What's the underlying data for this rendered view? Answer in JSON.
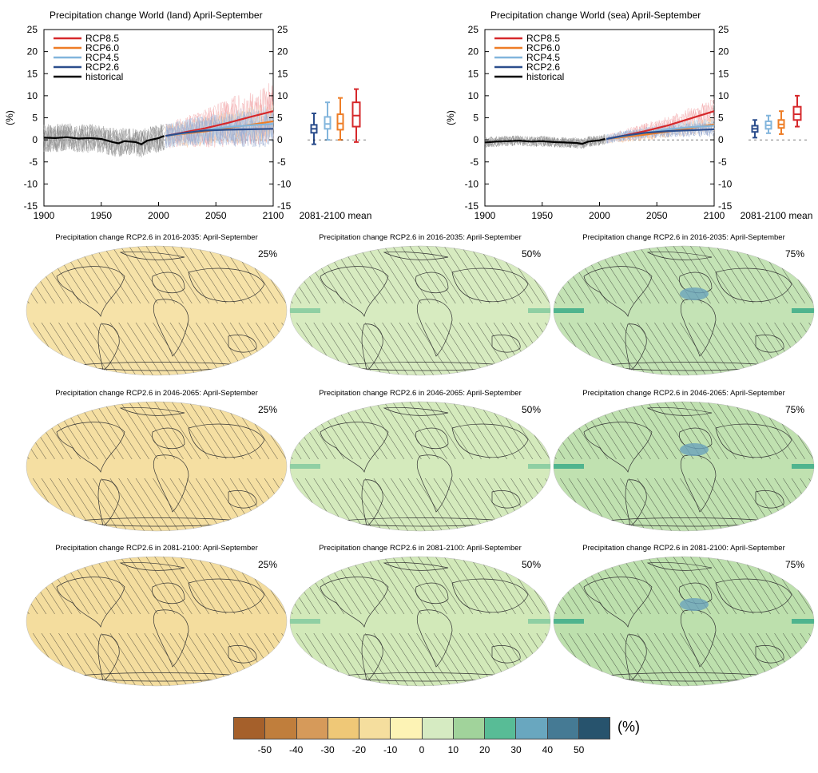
{
  "chart_data": [
    {
      "type": "line",
      "title": "Precipitation change World (land) April-September",
      "ylabel": "(%)",
      "xlim": [
        1900,
        2100
      ],
      "ylim": [
        -15,
        25
      ],
      "x_ticks": [
        "1900",
        "1950",
        "2000",
        "2050",
        "2100"
      ],
      "y_ticks": [
        "-15",
        "-10",
        "-5",
        "0",
        "5",
        "10",
        "15",
        "20",
        "25"
      ],
      "box_label": "2081-2100 mean",
      "legend_position": "top-left",
      "series": [
        {
          "name": "RCP8.5",
          "color": "#d6282b",
          "x": [
            2006,
            2020,
            2040,
            2060,
            2080,
            2100
          ],
          "values": [
            0.9,
            1.6,
            2.6,
            3.8,
            5.2,
            6.5
          ]
        },
        {
          "name": "RCP6.0",
          "color": "#ee7d26",
          "x": [
            2006,
            2020,
            2040,
            2060,
            2080,
            2100
          ],
          "values": [
            0.9,
            1.3,
            1.9,
            2.7,
            3.4,
            4.2
          ]
        },
        {
          "name": "RCP4.5",
          "color": "#82b5dc",
          "x": [
            2006,
            2020,
            2040,
            2060,
            2080,
            2100
          ],
          "values": [
            0.9,
            1.4,
            2.2,
            2.9,
            3.3,
            3.6
          ]
        },
        {
          "name": "RCP2.6",
          "color": "#2b4d8c",
          "x": [
            2006,
            2020,
            2040,
            2060,
            2080,
            2100
          ],
          "values": [
            0.9,
            1.5,
            2.1,
            2.3,
            2.4,
            2.5
          ]
        },
        {
          "name": "historical",
          "color": "#000000",
          "x": [
            1900,
            1910,
            1920,
            1930,
            1940,
            1950,
            1960,
            1965,
            1970,
            1980,
            1985,
            1990,
            2000,
            2005
          ],
          "values": [
            0.5,
            0.4,
            0.6,
            0.3,
            0.4,
            0.2,
            -0.5,
            -0.8,
            -0.3,
            -0.5,
            -1.0,
            -0.2,
            0.4,
            0.9
          ]
        }
      ],
      "boxes": [
        {
          "name": "RCP2.6",
          "color": "#2b4d8c",
          "min": -1.0,
          "q1": 1.6,
          "median": 2.5,
          "q3": 3.4,
          "max": 6.0
        },
        {
          "name": "RCP4.5",
          "color": "#82b5dc",
          "min": 0.0,
          "q1": 2.5,
          "median": 3.6,
          "q3": 5.2,
          "max": 8.5
        },
        {
          "name": "RCP6.0",
          "color": "#ee7d26",
          "min": 0.0,
          "q1": 2.3,
          "median": 3.7,
          "q3": 5.8,
          "max": 9.5
        },
        {
          "name": "RCP8.5",
          "color": "#d6282b",
          "min": -0.5,
          "q1": 3.0,
          "median": 5.5,
          "q3": 8.5,
          "max": 11.5
        }
      ]
    },
    {
      "type": "line",
      "title": "Precipitation change World (sea) April-September",
      "ylabel": "(%)",
      "xlim": [
        1900,
        2100
      ],
      "ylim": [
        -15,
        25
      ],
      "x_ticks": [
        "1900",
        "1950",
        "2000",
        "2050",
        "2100"
      ],
      "y_ticks": [
        "-15",
        "-10",
        "-5",
        "0",
        "5",
        "10",
        "15",
        "20",
        "25"
      ],
      "box_label": "2081-2100 mean",
      "legend_position": "top-left",
      "series": [
        {
          "name": "RCP8.5",
          "color": "#d6282b",
          "x": [
            2006,
            2020,
            2040,
            2060,
            2080,
            2100
          ],
          "values": [
            0.2,
            0.9,
            2.0,
            3.3,
            4.9,
            6.5
          ]
        },
        {
          "name": "RCP6.0",
          "color": "#ee7d26",
          "x": [
            2006,
            2020,
            2040,
            2060,
            2080,
            2100
          ],
          "values": [
            0.2,
            0.6,
            1.2,
            1.9,
            2.7,
            3.5
          ]
        },
        {
          "name": "RCP4.5",
          "color": "#82b5dc",
          "x": [
            2006,
            2020,
            2040,
            2060,
            2080,
            2100
          ],
          "values": [
            0.2,
            0.8,
            1.6,
            2.4,
            2.9,
            3.2
          ]
        },
        {
          "name": "RCP2.6",
          "color": "#2b4d8c",
          "x": [
            2006,
            2020,
            2040,
            2060,
            2080,
            2100
          ],
          "values": [
            0.2,
            0.9,
            1.6,
            2.0,
            2.2,
            2.4
          ]
        },
        {
          "name": "historical",
          "color": "#000000",
          "x": [
            1900,
            1910,
            1920,
            1930,
            1940,
            1950,
            1960,
            1970,
            1980,
            1985,
            1990,
            2000,
            2005
          ],
          "values": [
            -0.6,
            -0.4,
            -0.3,
            -0.2,
            -0.4,
            -0.3,
            -0.5,
            -0.6,
            -0.7,
            -0.9,
            -0.4,
            -0.1,
            0.2
          ]
        }
      ],
      "boxes": [
        {
          "name": "RCP2.6",
          "color": "#2b4d8c",
          "min": 0.5,
          "q1": 1.8,
          "median": 2.5,
          "q3": 3.2,
          "max": 4.5
        },
        {
          "name": "RCP4.5",
          "color": "#82b5dc",
          "min": 1.5,
          "q1": 2.5,
          "median": 3.3,
          "q3": 4.2,
          "max": 5.5
        },
        {
          "name": "RCP6.0",
          "color": "#ee7d26",
          "min": 1.3,
          "q1": 2.7,
          "median": 3.5,
          "q3": 4.5,
          "max": 6.5
        },
        {
          "name": "RCP8.5",
          "color": "#d6282b",
          "min": 3.0,
          "q1": 4.5,
          "median": 5.8,
          "q3": 7.5,
          "max": 10.0
        }
      ]
    },
    {
      "type": "heatmap",
      "maps": [
        {
          "title": "Precipitation change RCP2.6 in 2016-2035: April-September",
          "percentile": "25%",
          "fill": "#f6e2a8"
        },
        {
          "title": "Precipitation change RCP2.6 in 2016-2035: April-September",
          "percentile": "50%",
          "fill": "#d7ebc0"
        },
        {
          "title": "Precipitation change RCP2.6 in 2016-2035: April-September",
          "percentile": "75%",
          "fill": "#c4e3b5"
        },
        {
          "title": "Precipitation change RCP2.6 in 2046-2065: April-September",
          "percentile": "25%",
          "fill": "#f5dfa2"
        },
        {
          "title": "Precipitation change RCP2.6 in 2046-2065: April-September",
          "percentile": "50%",
          "fill": "#d4eabc"
        },
        {
          "title": "Precipitation change RCP2.6 in 2046-2065: April-September",
          "percentile": "75%",
          "fill": "#c0e1b0"
        },
        {
          "title": "Precipitation change RCP2.6 in 2081-2100: April-September",
          "percentile": "25%",
          "fill": "#f4dd9e"
        },
        {
          "title": "Precipitation change RCP2.6 in 2081-2100: April-September",
          "percentile": "50%",
          "fill": "#d2e9b9"
        },
        {
          "title": "Precipitation change RCP2.6 in 2081-2100: April-September",
          "percentile": "75%",
          "fill": "#bde0ad"
        }
      ],
      "colorbar": {
        "unit": "(%)",
        "colors": [
          "#a5602b",
          "#c07e3c",
          "#d69a5a",
          "#efc877",
          "#f5de9e",
          "#fdf3b5",
          "#d6ebc2",
          "#a1d39b",
          "#58bc96",
          "#69a7bf",
          "#457a94",
          "#27536d"
        ],
        "ticks": [
          "-50",
          "-40",
          "-30",
          "-20",
          "-10",
          "0",
          "10",
          "20",
          "30",
          "40",
          "50"
        ]
      }
    }
  ]
}
